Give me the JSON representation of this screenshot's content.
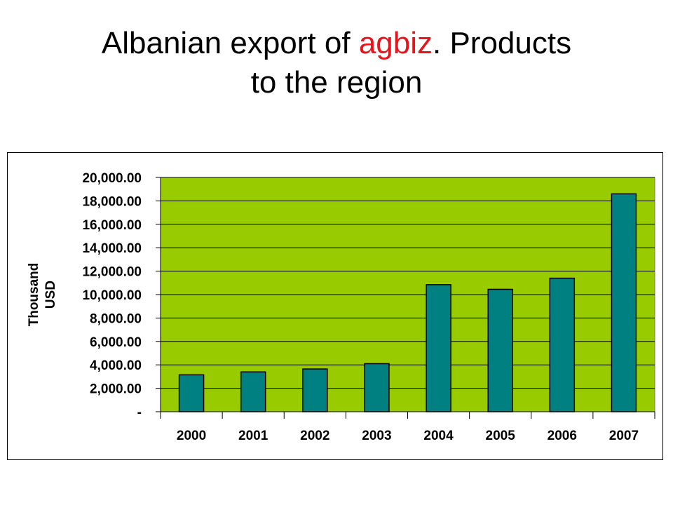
{
  "slide": {
    "title_part1": "Albanian export of ",
    "title_highlight": "agbiz",
    "title_part2": ". Products",
    "title_line2": "to the region"
  },
  "colors": {
    "plot_background": "#99cc00",
    "bar_fill": "#008080",
    "bar_stroke": "#000000",
    "title_highlight": "#e8141b"
  },
  "chart_data": {
    "type": "bar",
    "categories": [
      "2000",
      "2001",
      "2002",
      "2003",
      "2004",
      "2005",
      "2006",
      "2007"
    ],
    "values": [
      3150,
      3400,
      3650,
      4100,
      10850,
      10450,
      11400,
      18600
    ],
    "ylabel_line1": "Thousand",
    "ylabel_line2": "USD",
    "ylim": [
      0,
      20000
    ],
    "yticks": [
      0,
      2000,
      4000,
      6000,
      8000,
      10000,
      12000,
      14000,
      16000,
      18000,
      20000
    ],
    "ytick_labels": [
      "-",
      "2,000.00",
      "4,000.00",
      "6,000.00",
      "8,000.00",
      "10,000.00",
      "12,000.00",
      "14,000.00",
      "16,000.00",
      "18,000.00",
      "20,000.00"
    ],
    "grid": true,
    "legend": false
  }
}
